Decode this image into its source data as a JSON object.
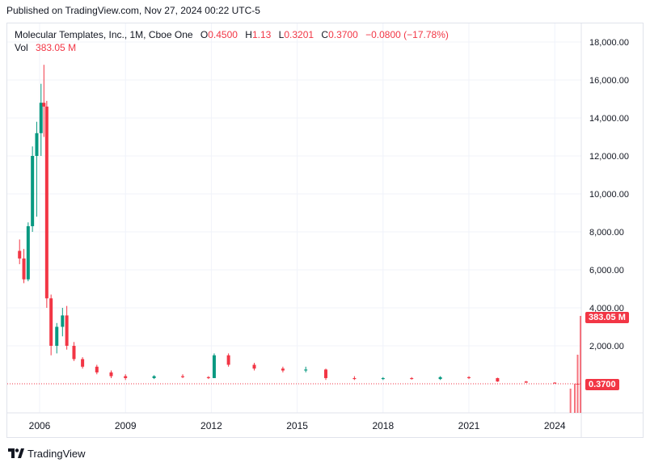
{
  "header": {
    "published": "Published on TradingView.com, Nov 27, 2024 00:22 UTC-5"
  },
  "legend": {
    "symbol": "Molecular Templates, Inc., 1M, Cboe One",
    "open_label": "O",
    "open": "0.4500",
    "high_label": "H",
    "high": "1.13",
    "low_label": "L",
    "low": "0.3201",
    "close_label": "C",
    "close": "0.3700",
    "change": "−0.0800 (−17.78%)",
    "vol_label": "Vol",
    "vol": "383.05 M"
  },
  "footer": {
    "brand": "TradingView"
  },
  "colors": {
    "up": "#089981",
    "down": "#f23645",
    "grid": "#f0f3fa",
    "axis_text": "#131722"
  },
  "chart_data": {
    "type": "candlestick",
    "yticks": [
      2000,
      4000,
      6000,
      8000,
      10000,
      12000,
      14000,
      16000,
      18000
    ],
    "ytick_labels": [
      "2,000.00",
      "4,000.00",
      "6,000.00",
      "8,000.00",
      "10,000.00",
      "12,000.00",
      "14,000.00",
      "16,000.00",
      "18,000.00"
    ],
    "xticks": [
      2006,
      2009,
      2012,
      2015,
      2018,
      2021,
      2024
    ],
    "last_price": 0.37,
    "last_price_label": "0.3700",
    "volume_label": "383.05 M",
    "points": [
      [
        2005.3,
        7000,
        7600,
        6300,
        6600
      ],
      [
        2005.45,
        6600,
        7100,
        5300,
        5500
      ],
      [
        2005.6,
        5500,
        8500,
        5400,
        8300
      ],
      [
        2005.75,
        8300,
        12500,
        8000,
        12000
      ],
      [
        2005.9,
        12000,
        13800,
        8800,
        13200
      ],
      [
        2006.05,
        13200,
        15800,
        12000,
        14800
      ],
      [
        2006.15,
        14800,
        16800,
        13000,
        14600
      ],
      [
        2006.25,
        14600,
        14900,
        4000,
        4500
      ],
      [
        2006.4,
        4500,
        4700,
        1500,
        2000
      ],
      [
        2006.6,
        2000,
        3200,
        1600,
        3000
      ],
      [
        2006.8,
        3000,
        4000,
        2500,
        3600
      ],
      [
        2006.95,
        3600,
        4100,
        1800,
        2000
      ],
      [
        2007.2,
        2000,
        2200,
        1200,
        1300
      ],
      [
        2007.5,
        1300,
        1400,
        800,
        900
      ],
      [
        2008.0,
        900,
        1000,
        500,
        600
      ],
      [
        2008.5,
        600,
        700,
        300,
        400
      ],
      [
        2009.0,
        400,
        500,
        200,
        300
      ],
      [
        2010.0,
        300,
        450,
        250,
        400
      ],
      [
        2011.0,
        400,
        500,
        300,
        350
      ],
      [
        2011.9,
        350,
        400,
        250,
        300
      ],
      [
        2012.1,
        300,
        1600,
        300,
        1500
      ],
      [
        2012.6,
        1500,
        1600,
        900,
        1000
      ],
      [
        2013.5,
        1000,
        1100,
        700,
        800
      ],
      [
        2014.5,
        800,
        900,
        600,
        700
      ],
      [
        2015.3,
        700,
        900,
        600,
        750
      ],
      [
        2016.0,
        750,
        800,
        200,
        300
      ],
      [
        2017.0,
        300,
        400,
        200,
        250
      ],
      [
        2018.0,
        250,
        350,
        200,
        300
      ],
      [
        2019.0,
        300,
        350,
        220,
        250
      ],
      [
        2020.0,
        250,
        400,
        200,
        350
      ],
      [
        2021.0,
        350,
        400,
        250,
        300
      ],
      [
        2022.0,
        300,
        320,
        100,
        120
      ],
      [
        2023.0,
        120,
        150,
        50,
        60
      ],
      [
        2024.0,
        60,
        80,
        10,
        20
      ],
      [
        2024.8,
        0.45,
        1.13,
        0.32,
        0.37
      ]
    ],
    "volume_bars": [
      [
        2024.55,
        0.25
      ],
      [
        2024.7,
        0.3
      ],
      [
        2024.8,
        0.6
      ],
      [
        2024.9,
        1.0
      ]
    ]
  }
}
